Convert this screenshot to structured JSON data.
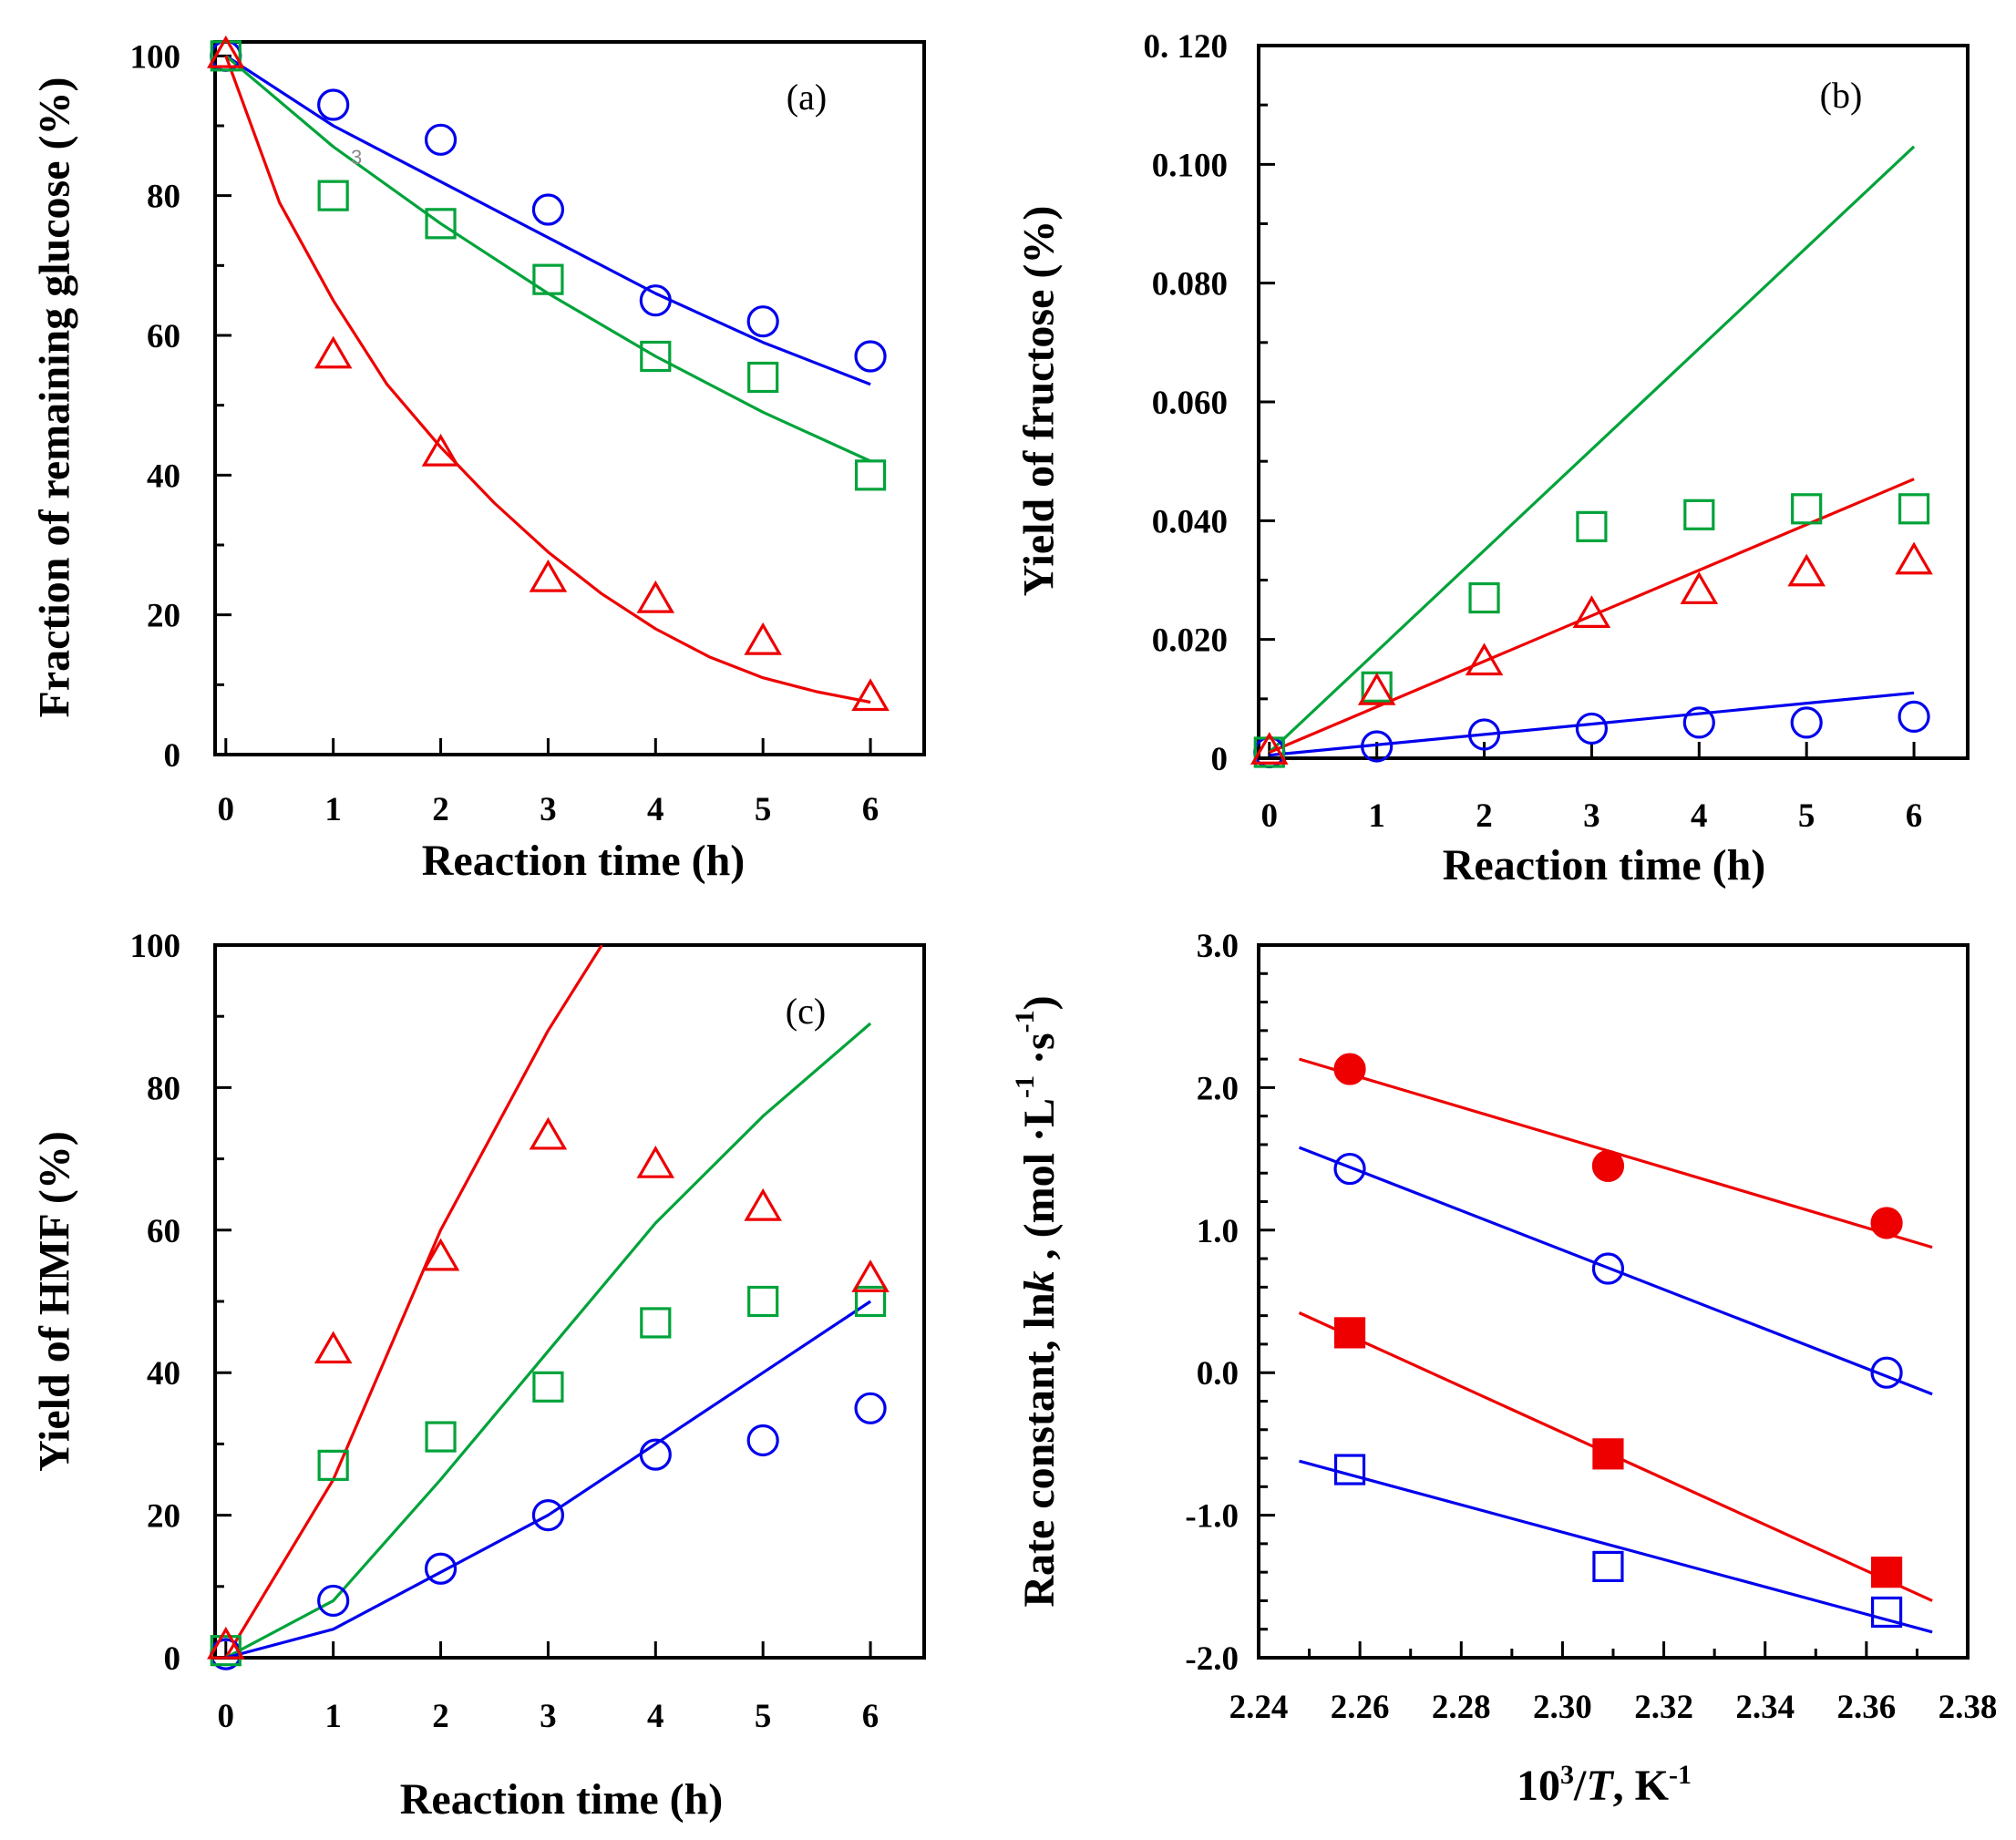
{
  "colors": {
    "blue": "#0000ee",
    "green": "#00a33a",
    "red": "#ee0000",
    "axis": "#000000",
    "stray": "#888888"
  },
  "chart_data": [
    {
      "id": "a",
      "type": "scatter",
      "panel_label": "(a)",
      "stray_text": "3",
      "xlabel": "Reaction time (h)",
      "ylabel": "Fraction of remaining glucose (%)",
      "xlim": [
        -0.1,
        6.5
      ],
      "ylim": [
        0,
        102
      ],
      "xticks": [
        0,
        1,
        2,
        3,
        4,
        5,
        6
      ],
      "xtick_labels": [
        "0",
        "1",
        "2",
        "3",
        "4",
        "5",
        "6"
      ],
      "yticks": [
        0,
        20,
        40,
        60,
        80,
        100
      ],
      "ytick_labels": [
        "0",
        "20",
        "40",
        "60",
        "80",
        "100"
      ],
      "yminor": 10,
      "series": [
        {
          "name": "circle",
          "marker": "circle",
          "color": "blue",
          "filled": false,
          "x": [
            0,
            1,
            2,
            3,
            4,
            5,
            6
          ],
          "y": [
            100,
            93,
            88,
            78,
            65,
            62,
            57
          ]
        },
        {
          "name": "square",
          "marker": "square",
          "color": "green",
          "filled": false,
          "x": [
            0,
            1,
            2,
            3,
            4,
            5,
            6
          ],
          "y": [
            100,
            80,
            76,
            68,
            57,
            54,
            40
          ]
        },
        {
          "name": "triangle",
          "marker": "triangle",
          "color": "red",
          "filled": false,
          "x": [
            0,
            1,
            2,
            3,
            4,
            5,
            6
          ],
          "y": [
            100,
            57,
            43,
            25,
            22,
            16,
            8
          ]
        }
      ],
      "fits": [
        {
          "color": "blue",
          "x": [
            0,
            1,
            2,
            3,
            4,
            5,
            6
          ],
          "y": [
            100,
            90,
            82,
            74,
            66,
            59,
            53
          ]
        },
        {
          "color": "green",
          "x": [
            0,
            1,
            2,
            3,
            4,
            5,
            6
          ],
          "y": [
            100,
            87,
            76,
            66,
            57,
            49,
            42
          ]
        },
        {
          "color": "red",
          "x": [
            0,
            0.5,
            1,
            1.5,
            2,
            2.5,
            3,
            3.5,
            4,
            4.5,
            5,
            5.5,
            6
          ],
          "y": [
            100,
            79,
            65,
            53,
            44,
            36,
            29,
            23,
            18,
            14,
            11,
            9,
            7.5
          ]
        }
      ]
    },
    {
      "id": "b",
      "type": "scatter",
      "panel_label": "(b)",
      "xlabel": "Reaction time (h)",
      "ylabel": "Yield of fructose (%)",
      "xlim": [
        -0.1,
        6.5
      ],
      "ylim": [
        0,
        0.12
      ],
      "xticks": [
        0,
        1,
        2,
        3,
        4,
        5,
        6
      ],
      "xtick_labels": [
        "0",
        "1",
        "2",
        "3",
        "4",
        "5",
        "6"
      ],
      "yticks": [
        0,
        0.02,
        0.04,
        0.06,
        0.08,
        0.1,
        0.12
      ],
      "ytick_labels": [
        "0",
        "0.020",
        "0.040",
        "0.060",
        "0.080",
        "0.100",
        "0. 120"
      ],
      "yminor": 0.01,
      "series": [
        {
          "name": "circle",
          "marker": "circle",
          "color": "blue",
          "filled": false,
          "x": [
            0,
            1,
            2,
            3,
            4,
            5,
            6
          ],
          "y": [
            0.001,
            0.002,
            0.004,
            0.005,
            0.006,
            0.006,
            0.007
          ]
        },
        {
          "name": "square",
          "marker": "square",
          "color": "green",
          "filled": false,
          "x": [
            0,
            1,
            2,
            3,
            4,
            5,
            6
          ],
          "y": [
            0.001,
            0.012,
            0.027,
            0.039,
            0.041,
            0.042,
            0.042
          ]
        },
        {
          "name": "triangle",
          "marker": "triangle",
          "color": "red",
          "filled": false,
          "x": [
            0,
            1,
            2,
            3,
            4,
            5,
            6
          ],
          "y": [
            0.001,
            0.011,
            0.016,
            0.024,
            0.028,
            0.031,
            0.033
          ]
        }
      ],
      "fits": [
        {
          "color": "green",
          "x": [
            0,
            6
          ],
          "y": [
            0.001,
            0.103
          ]
        },
        {
          "color": "red",
          "x": [
            0,
            6
          ],
          "y": [
            0.001,
            0.047
          ]
        },
        {
          "color": "blue",
          "x": [
            0,
            6
          ],
          "y": [
            0.0005,
            0.011
          ]
        }
      ]
    },
    {
      "id": "c",
      "type": "scatter",
      "panel_label": "(c)",
      "xlabel": "Reaction time (h)",
      "ylabel": "Yield of HMF (%)",
      "xlim": [
        -0.1,
        6.5
      ],
      "ylim": [
        0,
        100
      ],
      "xticks": [
        0,
        1,
        2,
        3,
        4,
        5,
        6
      ],
      "xtick_labels": [
        "0",
        "1",
        "2",
        "3",
        "4",
        "5",
        "6"
      ],
      "yticks": [
        0,
        20,
        40,
        60,
        80,
        100
      ],
      "ytick_labels": [
        "0",
        "20",
        "40",
        "60",
        "80",
        "100"
      ],
      "yminor": 10,
      "series": [
        {
          "name": "circle",
          "marker": "circle",
          "color": "blue",
          "filled": false,
          "x": [
            0,
            1,
            2,
            3,
            4,
            5,
            6
          ],
          "y": [
            0.5,
            8,
            12.5,
            20,
            28.5,
            30.5,
            35
          ]
        },
        {
          "name": "square",
          "marker": "square",
          "color": "green",
          "filled": false,
          "x": [
            0,
            1,
            2,
            3,
            4,
            5,
            6
          ],
          "y": [
            1,
            27,
            31,
            38,
            47,
            50,
            50
          ]
        },
        {
          "name": "triangle",
          "marker": "triangle",
          "color": "red",
          "filled": false,
          "x": [
            0,
            1,
            2,
            3,
            4,
            5,
            6
          ],
          "y": [
            1.5,
            43,
            56,
            73,
            69,
            63,
            53
          ]
        }
      ],
      "fits": [
        {
          "color": "red",
          "x": [
            0,
            1,
            2,
            3,
            3.5
          ],
          "y": [
            0,
            25,
            60,
            88,
            100
          ]
        },
        {
          "color": "green",
          "x": [
            0,
            1,
            2,
            3,
            4,
            5,
            6
          ],
          "y": [
            0,
            8,
            25,
            43,
            61,
            76,
            89
          ]
        },
        {
          "color": "blue",
          "x": [
            0,
            1,
            2,
            3,
            4,
            5,
            6
          ],
          "y": [
            0,
            4,
            12,
            20,
            30,
            40,
            50
          ]
        }
      ]
    },
    {
      "id": "d",
      "type": "scatter",
      "xlabel_parts": [
        "10",
        "3",
        "/",
        "T",
        ", K",
        "-1"
      ],
      "ylabel_parts": [
        "Rate constant, ln",
        "k",
        " , (mol ·L",
        "-1",
        " ·s",
        "-1",
        ")"
      ],
      "xlim": [
        2.24,
        2.38
      ],
      "ylim": [
        -2.0,
        3.0
      ],
      "xticks": [
        2.24,
        2.26,
        2.28,
        2.3,
        2.32,
        2.34,
        2.36,
        2.38
      ],
      "xtick_labels": [
        "2.24",
        "2.26",
        "2.28",
        "2.30",
        "2.32",
        "2.34",
        "2.36",
        "2.38"
      ],
      "yticks": [
        -2.0,
        -1.0,
        0.0,
        1.0,
        2.0,
        3.0
      ],
      "ytick_labels": [
        "-2.0",
        "-1.0",
        "0.0",
        "1.0",
        "2.0",
        "3.0"
      ],
      "yminor": 0.2,
      "xminor": 0.01,
      "series": [
        {
          "name": "filled-circle",
          "marker": "circle",
          "color": "red",
          "filled": true,
          "x": [
            2.258,
            2.309,
            2.364
          ],
          "y": [
            2.13,
            1.45,
            1.05
          ]
        },
        {
          "name": "open-circle",
          "marker": "circle",
          "color": "blue",
          "filled": false,
          "x": [
            2.258,
            2.309,
            2.364
          ],
          "y": [
            1.43,
            0.73,
            0.0
          ]
        },
        {
          "name": "filled-square",
          "marker": "square",
          "color": "red",
          "filled": true,
          "x": [
            2.258,
            2.309,
            2.364
          ],
          "y": [
            0.28,
            -0.57,
            -1.4
          ]
        },
        {
          "name": "open-square",
          "marker": "square",
          "color": "blue",
          "filled": false,
          "x": [
            2.258,
            2.309,
            2.364
          ],
          "y": [
            -0.68,
            -1.36,
            -1.68
          ]
        }
      ],
      "fits": [
        {
          "color": "red",
          "x": [
            2.248,
            2.373
          ],
          "y": [
            2.2,
            0.88
          ]
        },
        {
          "color": "blue",
          "x": [
            2.248,
            2.373
          ],
          "y": [
            1.58,
            -0.15
          ]
        },
        {
          "color": "red",
          "x": [
            2.248,
            2.373
          ],
          "y": [
            0.42,
            -1.6
          ]
        },
        {
          "color": "blue",
          "x": [
            2.248,
            2.373
          ],
          "y": [
            -0.62,
            -1.82
          ]
        }
      ]
    }
  ]
}
